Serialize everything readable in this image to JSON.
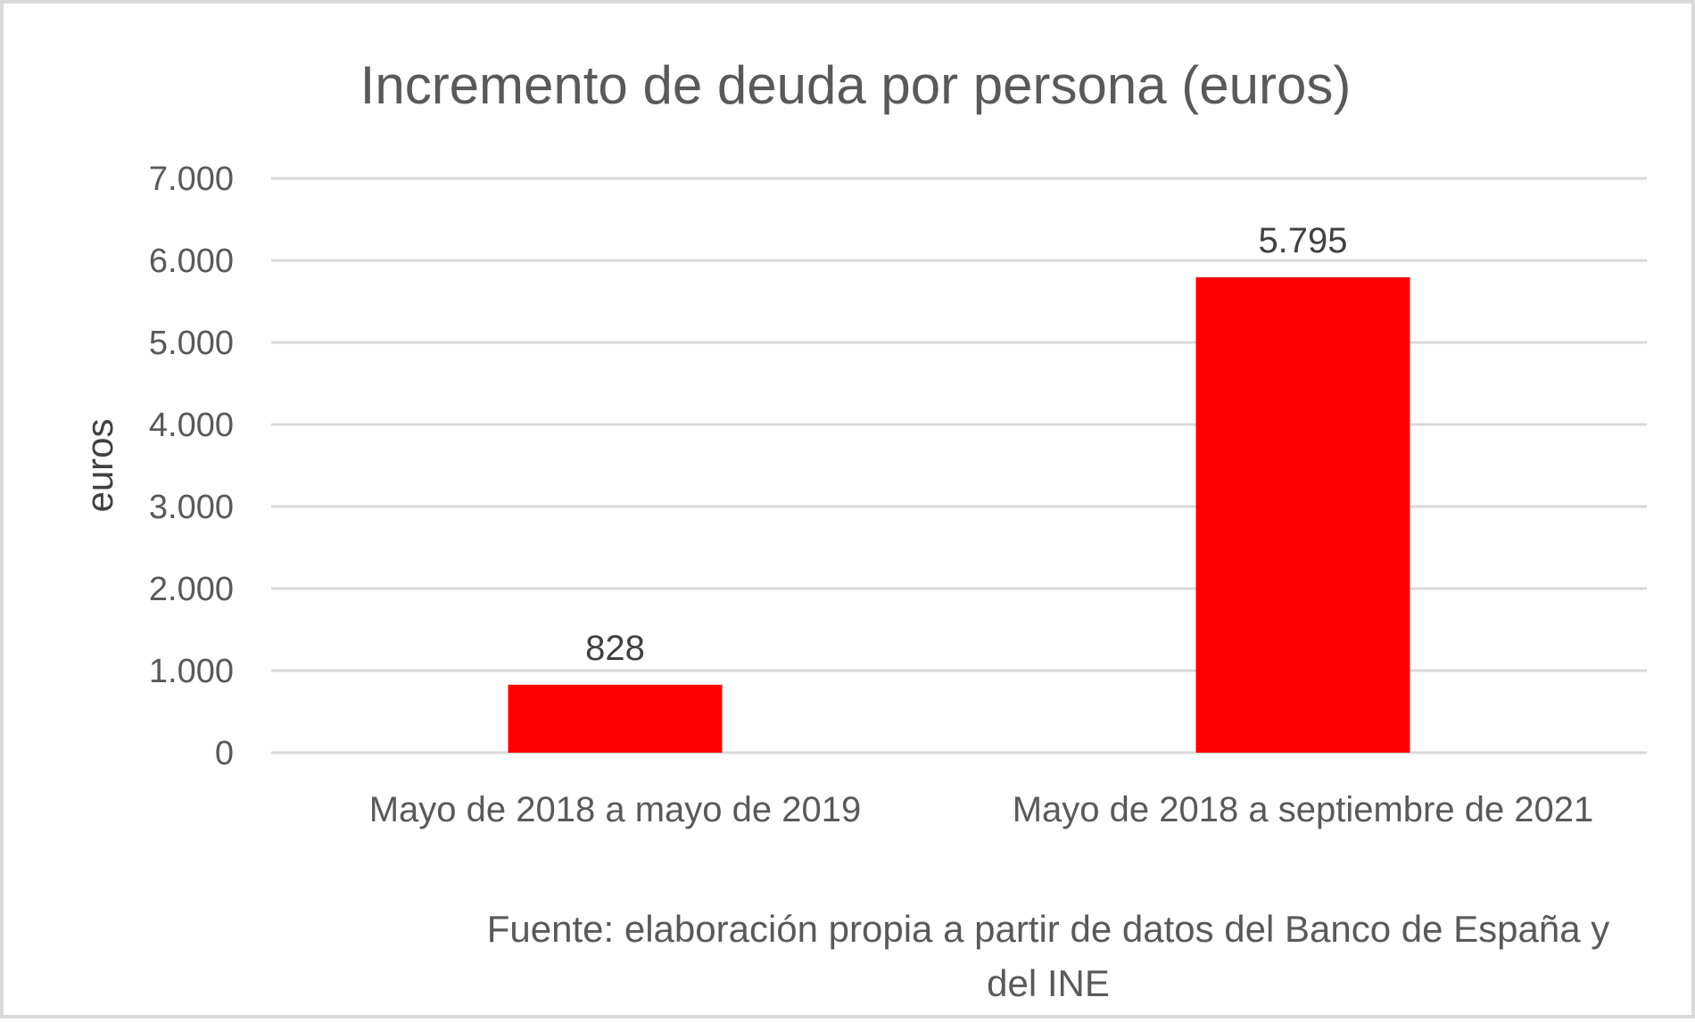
{
  "chart_data": {
    "type": "bar",
    "title": "Incremento de deuda por persona (euros)",
    "ylabel": "euros",
    "xlabel": "",
    "categories": [
      "Mayo de 2018 a mayo de 2019",
      "Mayo de 2018 a septiembre de 2021"
    ],
    "values": [
      828,
      5795
    ],
    "data_labels": [
      "828",
      "5.795"
    ],
    "ylim": [
      0,
      7000
    ],
    "yticks": [
      0,
      1000,
      2000,
      3000,
      4000,
      5000,
      6000,
      7000
    ],
    "ytick_labels": [
      "0",
      "1.000",
      "2.000",
      "3.000",
      "4.000",
      "5.000",
      "6.000",
      "7.000"
    ],
    "grid": true,
    "bar_color": "#ff0000",
    "source_lines": [
      "Fuente: elaboración propia a partir de datos del Banco de España y",
      "del INE"
    ]
  }
}
